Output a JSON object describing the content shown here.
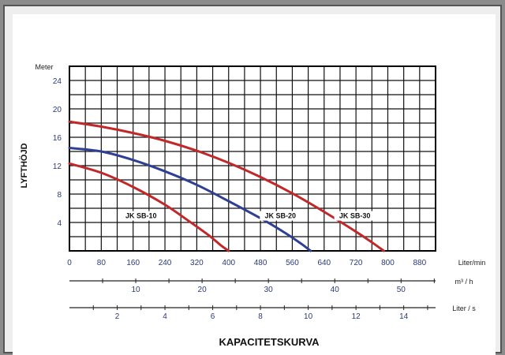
{
  "chart_data": {
    "type": "line",
    "title": "KAPACITETSKURVA",
    "ylabel": "LYFTHÖJD",
    "yunit": "Meter",
    "ylim": [
      0,
      26
    ],
    "yticks": [
      4,
      8,
      12,
      16,
      20,
      24
    ],
    "xlim": [
      0,
      920
    ],
    "xunit": "Liter/min",
    "xticks": [
      0,
      80,
      160,
      240,
      320,
      400,
      480,
      560,
      640,
      720,
      800,
      880
    ],
    "secondary_axes": [
      {
        "unit": "m³ / h",
        "factor": 16.6667,
        "ticks": [
          10,
          20,
          30,
          40,
          50
        ]
      },
      {
        "unit": "Liter / s",
        "factor": 60,
        "ticks": [
          2,
          4,
          6,
          8,
          10,
          12,
          14
        ]
      }
    ],
    "grid": true,
    "series": [
      {
        "name": "JK SB-10",
        "color": "#c0282a",
        "label_at": [
          180,
          4.6
        ],
        "x": [
          0,
          80,
          160,
          240,
          300,
          350,
          380,
          400
        ],
        "y": [
          12.3,
          11,
          9,
          6.5,
          4.2,
          2.2,
          0.8,
          0
        ]
      },
      {
        "name": "JK SB-20",
        "color": "#2e3f94",
        "label_at": [
          530,
          4.6
        ],
        "x": [
          0,
          80,
          160,
          240,
          320,
          400,
          480,
          540,
          580,
          606
        ],
        "y": [
          14.5,
          14,
          12.8,
          11.2,
          9.3,
          7,
          4.6,
          2.6,
          1.1,
          0
        ]
      },
      {
        "name": "JK SB-30",
        "color": "#c0282a",
        "label_at": [
          717,
          4.6
        ],
        "x": [
          0,
          80,
          160,
          240,
          320,
          400,
          480,
          560,
          640,
          720,
          760,
          790
        ],
        "y": [
          18.2,
          17.5,
          16.6,
          15.5,
          14.1,
          12.4,
          10.4,
          8.1,
          5.5,
          2.7,
          1.2,
          0
        ]
      }
    ]
  }
}
